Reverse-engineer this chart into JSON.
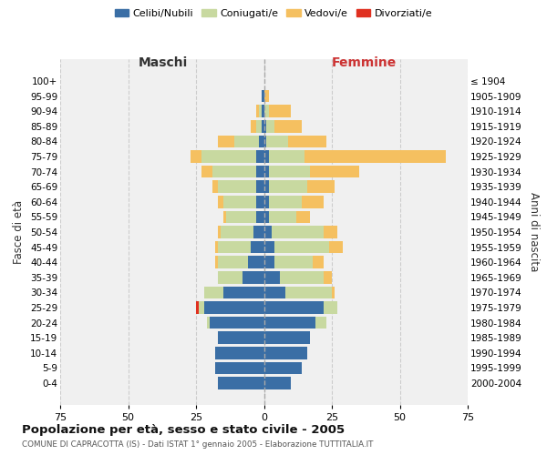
{
  "age_groups": [
    "0-4",
    "5-9",
    "10-14",
    "15-19",
    "20-24",
    "25-29",
    "30-34",
    "35-39",
    "40-44",
    "45-49",
    "50-54",
    "55-59",
    "60-64",
    "65-69",
    "70-74",
    "75-79",
    "80-84",
    "85-89",
    "90-94",
    "95-99",
    "100+"
  ],
  "birth_years": [
    "2000-2004",
    "1995-1999",
    "1990-1994",
    "1985-1989",
    "1980-1984",
    "1975-1979",
    "1970-1974",
    "1965-1969",
    "1960-1964",
    "1955-1959",
    "1950-1954",
    "1945-1949",
    "1940-1944",
    "1935-1939",
    "1930-1934",
    "1925-1929",
    "1920-1924",
    "1915-1919",
    "1910-1914",
    "1905-1909",
    "≤ 1904"
  ],
  "colors": {
    "celibi": "#3a6ea5",
    "coniugati": "#c8d9a0",
    "vedovi": "#f5c060",
    "divorziati": "#e03020"
  },
  "maschi": {
    "celibi": [
      17,
      18,
      18,
      17,
      20,
      22,
      15,
      8,
      6,
      5,
      4,
      3,
      3,
      3,
      3,
      3,
      2,
      1,
      1,
      1,
      0
    ],
    "coniugati": [
      0,
      0,
      0,
      0,
      1,
      2,
      7,
      9,
      11,
      12,
      12,
      11,
      12,
      14,
      16,
      20,
      9,
      2,
      1,
      0,
      0
    ],
    "vedovi": [
      0,
      0,
      0,
      0,
      0,
      0,
      0,
      0,
      1,
      1,
      1,
      1,
      2,
      2,
      4,
      4,
      6,
      2,
      1,
      0,
      0
    ],
    "divorziati": [
      0,
      0,
      0,
      0,
      0,
      1,
      0,
      0,
      0,
      0,
      0,
      0,
      0,
      0,
      0,
      0,
      0,
      0,
      0,
      0,
      0
    ]
  },
  "femmine": {
    "celibi": [
      10,
      14,
      16,
      17,
      19,
      22,
      8,
      6,
      4,
      4,
      3,
      2,
      2,
      2,
      2,
      2,
      1,
      1,
      0,
      0,
      0
    ],
    "coniugati": [
      0,
      0,
      0,
      0,
      4,
      5,
      17,
      16,
      14,
      20,
      19,
      10,
      12,
      14,
      15,
      13,
      8,
      3,
      2,
      0,
      0
    ],
    "vedovi": [
      0,
      0,
      0,
      0,
      0,
      0,
      1,
      3,
      4,
      5,
      5,
      5,
      8,
      10,
      18,
      52,
      14,
      10,
      8,
      2,
      0
    ],
    "divorziati": [
      0,
      0,
      0,
      0,
      0,
      0,
      0,
      0,
      0,
      0,
      0,
      0,
      0,
      0,
      0,
      0,
      0,
      0,
      0,
      0,
      0
    ]
  },
  "xlim": 75,
  "title": "Popolazione per età, sesso e stato civile - 2005",
  "subtitle": "COMUNE DI CAPRACOTTA (IS) - Dati ISTAT 1° gennaio 2005 - Elaborazione TUTTITALIA.IT",
  "ylabel_left": "Fasce di età",
  "ylabel_right": "Anni di nascita",
  "xlabel_left": "Maschi",
  "xlabel_right": "Femmine",
  "legend_labels": [
    "Celibi/Nubili",
    "Coniugati/e",
    "Vedovi/e",
    "Divorziati/e"
  ]
}
